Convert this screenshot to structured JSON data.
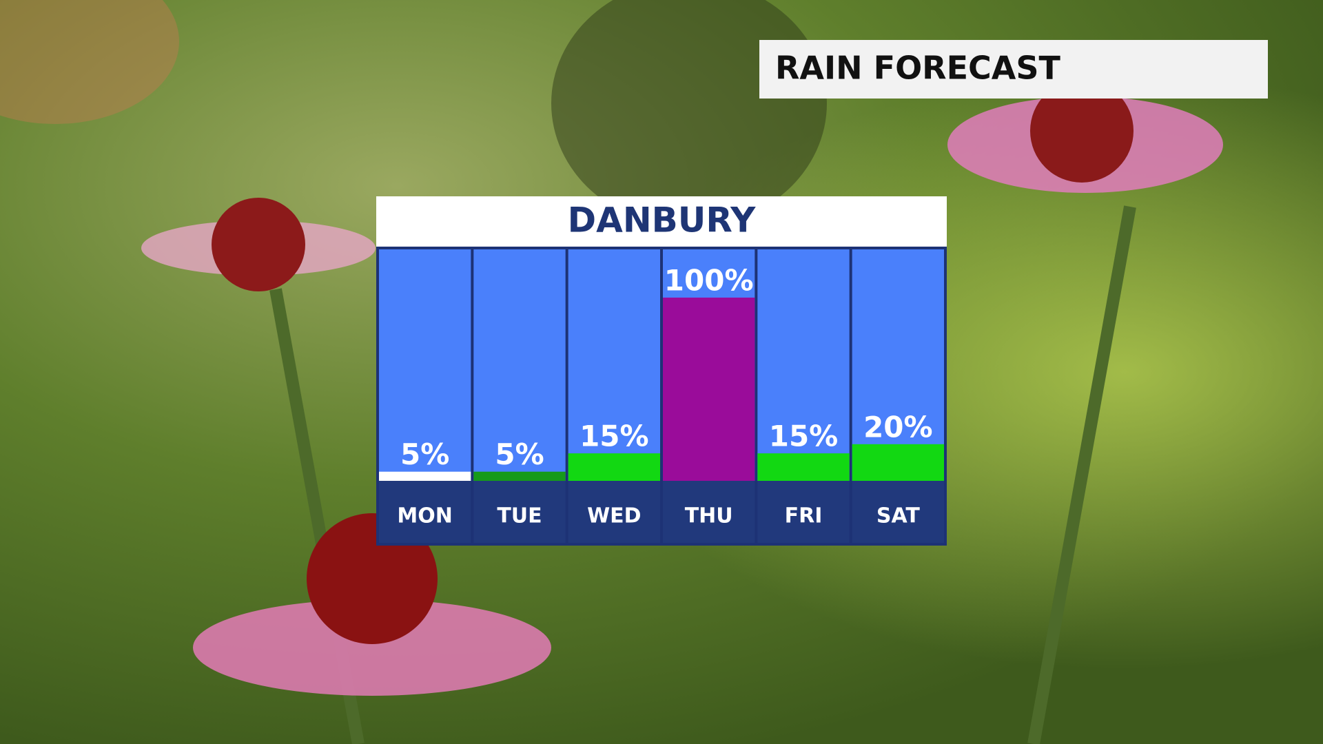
{
  "chart_data": {
    "type": "bar",
    "title": "RAIN FORECAST",
    "subtitle": "DANBURY",
    "categories": [
      "MON",
      "TUE",
      "WED",
      "THU",
      "FRI",
      "SAT"
    ],
    "values": [
      5,
      5,
      15,
      100,
      15,
      20
    ],
    "value_labels": [
      "5%",
      "5%",
      "15%",
      "100%",
      "15%",
      "20%"
    ],
    "colors": [
      "#ffffff",
      "#169a1a",
      "#12d812",
      "#9a0c9a",
      "#12d812",
      "#12d812"
    ],
    "ylim": [
      0,
      100
    ]
  }
}
